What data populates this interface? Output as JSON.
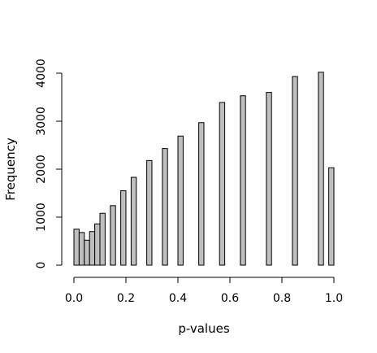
{
  "chart_data": {
    "type": "bar",
    "title": "",
    "xlabel": "p-values",
    "ylabel": "Frequency",
    "xlim": [
      0,
      1
    ],
    "ylim": [
      0,
      4000
    ],
    "grid": false,
    "bar_fill": "#bebebe",
    "bar_stroke": "#000000",
    "bar_width": 0.02,
    "x_ticks": [
      0.0,
      0.2,
      0.4,
      0.6,
      0.8,
      1.0
    ],
    "x_tick_labels": [
      "0.0",
      "0.2",
      "0.4",
      "0.6",
      "0.8",
      "1.0"
    ],
    "y_ticks": [
      0,
      1000,
      2000,
      3000,
      4000
    ],
    "y_tick_labels": [
      "0",
      "1000",
      "2000",
      "3000",
      "4000"
    ],
    "bars": [
      {
        "x_start": 0.0,
        "value": 750
      },
      {
        "x_start": 0.02,
        "value": 680
      },
      {
        "x_start": 0.04,
        "value": 520
      },
      {
        "x_start": 0.06,
        "value": 700
      },
      {
        "x_start": 0.08,
        "value": 860
      },
      {
        "x_start": 0.1,
        "value": 1080
      },
      {
        "x_start": 0.14,
        "value": 1240
      },
      {
        "x_start": 0.18,
        "value": 1550
      },
      {
        "x_start": 0.22,
        "value": 1830
      },
      {
        "x_start": 0.28,
        "value": 2180
      },
      {
        "x_start": 0.34,
        "value": 2430
      },
      {
        "x_start": 0.4,
        "value": 2690
      },
      {
        "x_start": 0.48,
        "value": 2970
      },
      {
        "x_start": 0.56,
        "value": 3390
      },
      {
        "x_start": 0.64,
        "value": 3530
      },
      {
        "x_start": 0.74,
        "value": 3600
      },
      {
        "x_start": 0.84,
        "value": 3930
      },
      {
        "x_start": 0.94,
        "value": 4020
      },
      {
        "x_start": 0.98,
        "value": 2030
      }
    ]
  }
}
